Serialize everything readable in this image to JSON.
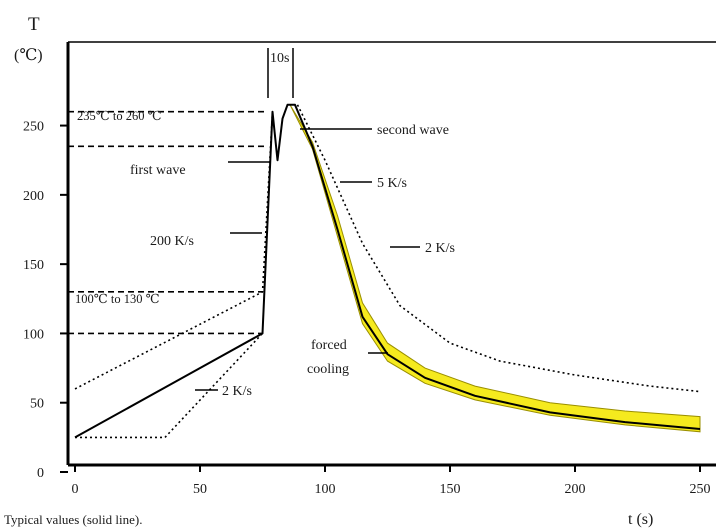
{
  "chart_data": {
    "type": "line",
    "title": "",
    "xlabel": "t (s)",
    "ylabel_symbol": "T",
    "ylabel_unit": "(℃)",
    "caption": "Typical values (solid line).",
    "xlim": [
      0,
      250
    ],
    "ylim": [
      0,
      280
    ],
    "x_ticks": [
      0,
      50,
      100,
      150,
      200,
      250
    ],
    "y_ticks": [
      0,
      50,
      100,
      150,
      200,
      250
    ],
    "y_tick_labels": [
      "0",
      "50",
      "100",
      "150",
      "200",
      "250"
    ],
    "grid": false,
    "reference_lines": [
      {
        "y": 260,
        "x_end": 77
      },
      {
        "y": 235,
        "x_end": 77
      },
      {
        "y": 130,
        "x_end": 75
      },
      {
        "y": 100,
        "x_end": 75
      }
    ],
    "series": [
      {
        "style": "solid",
        "points": [
          [
            0,
            25
          ],
          [
            75,
            100
          ],
          [
            79,
            260
          ],
          [
            81,
            225
          ],
          [
            83,
            255
          ],
          [
            85,
            265
          ],
          [
            88,
            265
          ],
          [
            95,
            235
          ],
          [
            105,
            175
          ],
          [
            115,
            112
          ],
          [
            125,
            85
          ],
          [
            140,
            68
          ],
          [
            160,
            55
          ],
          [
            190,
            43
          ],
          [
            220,
            36
          ],
          [
            250,
            31
          ]
        ]
      },
      {
        "style": "dotted",
        "points": [
          [
            0,
            60
          ],
          [
            75,
            130
          ],
          [
            79,
            260
          ]
        ]
      },
      {
        "style": "dotted",
        "points": [
          [
            0,
            25
          ],
          [
            36,
            25
          ],
          [
            75,
            100
          ]
        ]
      },
      {
        "style": "dotted",
        "points": [
          [
            89,
            265
          ],
          [
            100,
            225
          ],
          [
            115,
            165
          ],
          [
            130,
            120
          ],
          [
            150,
            93
          ],
          [
            170,
            80
          ],
          [
            200,
            70
          ],
          [
            230,
            62
          ],
          [
            250,
            58
          ]
        ]
      }
    ],
    "forced_cooling_band": {
      "color": "#f5ea1e",
      "upper": [
        [
          86,
          265
        ],
        [
          95,
          238
        ],
        [
          105,
          185
        ],
        [
          115,
          122
        ],
        [
          125,
          93
        ],
        [
          140,
          75
        ],
        [
          160,
          62
        ],
        [
          190,
          50
        ],
        [
          220,
          44
        ],
        [
          250,
          40
        ]
      ],
      "lower": [
        [
          86,
          265
        ],
        [
          95,
          233
        ],
        [
          105,
          170
        ],
        [
          115,
          107
        ],
        [
          125,
          80
        ],
        [
          140,
          64
        ],
        [
          160,
          52
        ],
        [
          190,
          41
        ],
        [
          220,
          34
        ],
        [
          250,
          29
        ]
      ]
    },
    "annotations": {
      "ten_s": "10s",
      "band_upper": "235℃ to 260 ℃",
      "band_lower": "100℃ to 130 ℃",
      "first_wave": "first wave",
      "second_wave": "second wave",
      "rate_200": "200 K/s",
      "rate_5": "5 K/s",
      "rate_2_right": "2 K/s",
      "rate_2_bottom": "2 K/s",
      "forced": "forced",
      "cooling": "cooling"
    }
  }
}
